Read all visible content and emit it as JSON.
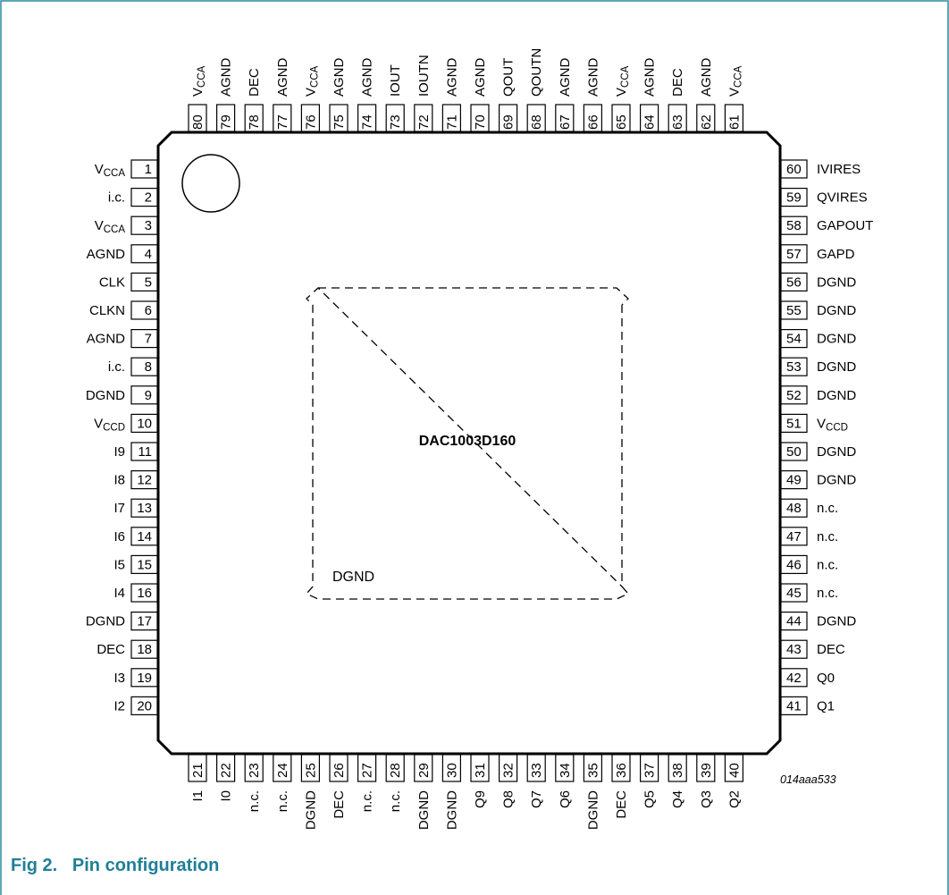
{
  "colors": {
    "accent": "#1f7f96",
    "line": "#000000",
    "frame": "#2b8aa0"
  },
  "diagram": {
    "chip_name": "DAC1003D160",
    "pad_label": "DGND",
    "figure_code": "014aaa533",
    "caption": "Fig 2.   Pin configuration",
    "pins": {
      "left": [
        {
          "num": "1",
          "name": "V",
          "sub": "CCA"
        },
        {
          "num": "2",
          "name": "i.c.",
          "sub": ""
        },
        {
          "num": "3",
          "name": "V",
          "sub": "CCA"
        },
        {
          "num": "4",
          "name": "AGND",
          "sub": ""
        },
        {
          "num": "5",
          "name": "CLK",
          "sub": ""
        },
        {
          "num": "6",
          "name": "CLKN",
          "sub": ""
        },
        {
          "num": "7",
          "name": "AGND",
          "sub": ""
        },
        {
          "num": "8",
          "name": "i.c.",
          "sub": ""
        },
        {
          "num": "9",
          "name": "DGND",
          "sub": ""
        },
        {
          "num": "10",
          "name": "V",
          "sub": "CCD"
        },
        {
          "num": "11",
          "name": "I9",
          "sub": ""
        },
        {
          "num": "12",
          "name": "I8",
          "sub": ""
        },
        {
          "num": "13",
          "name": "I7",
          "sub": ""
        },
        {
          "num": "14",
          "name": "I6",
          "sub": ""
        },
        {
          "num": "15",
          "name": "I5",
          "sub": ""
        },
        {
          "num": "16",
          "name": "I4",
          "sub": ""
        },
        {
          "num": "17",
          "name": "DGND",
          "sub": ""
        },
        {
          "num": "18",
          "name": "DEC",
          "sub": ""
        },
        {
          "num": "19",
          "name": "I3",
          "sub": ""
        },
        {
          "num": "20",
          "name": "I2",
          "sub": ""
        }
      ],
      "bottom": [
        {
          "num": "21",
          "name": "I1",
          "sub": ""
        },
        {
          "num": "22",
          "name": "I0",
          "sub": ""
        },
        {
          "num": "23",
          "name": "n.c.",
          "sub": ""
        },
        {
          "num": "24",
          "name": "n.c.",
          "sub": ""
        },
        {
          "num": "25",
          "name": "DGND",
          "sub": ""
        },
        {
          "num": "26",
          "name": "DEC",
          "sub": ""
        },
        {
          "num": "27",
          "name": "n.c.",
          "sub": ""
        },
        {
          "num": "28",
          "name": "n.c.",
          "sub": ""
        },
        {
          "num": "29",
          "name": "DGND",
          "sub": ""
        },
        {
          "num": "30",
          "name": "DGND",
          "sub": ""
        },
        {
          "num": "31",
          "name": "Q9",
          "sub": ""
        },
        {
          "num": "32",
          "name": "Q8",
          "sub": ""
        },
        {
          "num": "33",
          "name": "Q7",
          "sub": ""
        },
        {
          "num": "34",
          "name": "Q6",
          "sub": ""
        },
        {
          "num": "35",
          "name": "DGND",
          "sub": ""
        },
        {
          "num": "36",
          "name": "DEC",
          "sub": ""
        },
        {
          "num": "37",
          "name": "Q5",
          "sub": ""
        },
        {
          "num": "38",
          "name": "Q4",
          "sub": ""
        },
        {
          "num": "39",
          "name": "Q3",
          "sub": ""
        },
        {
          "num": "40",
          "name": "Q2",
          "sub": ""
        }
      ],
      "right": [
        {
          "num": "60",
          "name": "IVIRES",
          "sub": ""
        },
        {
          "num": "59",
          "name": "QVIRES",
          "sub": ""
        },
        {
          "num": "58",
          "name": "GAPOUT",
          "sub": ""
        },
        {
          "num": "57",
          "name": "GAPD",
          "sub": ""
        },
        {
          "num": "56",
          "name": "DGND",
          "sub": ""
        },
        {
          "num": "55",
          "name": "DGND",
          "sub": ""
        },
        {
          "num": "54",
          "name": "DGND",
          "sub": ""
        },
        {
          "num": "53",
          "name": "DGND",
          "sub": ""
        },
        {
          "num": "52",
          "name": "DGND",
          "sub": ""
        },
        {
          "num": "51",
          "name": "V",
          "sub": "CCD"
        },
        {
          "num": "50",
          "name": "DGND",
          "sub": ""
        },
        {
          "num": "49",
          "name": "DGND",
          "sub": ""
        },
        {
          "num": "48",
          "name": "n.c.",
          "sub": ""
        },
        {
          "num": "47",
          "name": "n.c.",
          "sub": ""
        },
        {
          "num": "46",
          "name": "n.c.",
          "sub": ""
        },
        {
          "num": "45",
          "name": "n.c.",
          "sub": ""
        },
        {
          "num": "44",
          "name": "DGND",
          "sub": ""
        },
        {
          "num": "43",
          "name": "DEC",
          "sub": ""
        },
        {
          "num": "42",
          "name": "Q0",
          "sub": ""
        },
        {
          "num": "41",
          "name": "Q1",
          "sub": ""
        }
      ],
      "top": [
        {
          "num": "80",
          "name": "V",
          "sub": "CCA"
        },
        {
          "num": "79",
          "name": "AGND",
          "sub": ""
        },
        {
          "num": "78",
          "name": "DEC",
          "sub": ""
        },
        {
          "num": "77",
          "name": "AGND",
          "sub": ""
        },
        {
          "num": "76",
          "name": "V",
          "sub": "CCA"
        },
        {
          "num": "75",
          "name": "AGND",
          "sub": ""
        },
        {
          "num": "74",
          "name": "AGND",
          "sub": ""
        },
        {
          "num": "73",
          "name": "IOUT",
          "sub": ""
        },
        {
          "num": "72",
          "name": "IOUTN",
          "sub": ""
        },
        {
          "num": "71",
          "name": "AGND",
          "sub": ""
        },
        {
          "num": "70",
          "name": "AGND",
          "sub": ""
        },
        {
          "num": "69",
          "name": "QOUT",
          "sub": ""
        },
        {
          "num": "68",
          "name": "QOUTN",
          "sub": ""
        },
        {
          "num": "67",
          "name": "AGND",
          "sub": ""
        },
        {
          "num": "66",
          "name": "AGND",
          "sub": ""
        },
        {
          "num": "65",
          "name": "V",
          "sub": "CCA"
        },
        {
          "num": "64",
          "name": "AGND",
          "sub": ""
        },
        {
          "num": "63",
          "name": "DEC",
          "sub": ""
        },
        {
          "num": "62",
          "name": "AGND",
          "sub": ""
        },
        {
          "num": "61",
          "name": "V",
          "sub": "CCA"
        }
      ]
    }
  }
}
